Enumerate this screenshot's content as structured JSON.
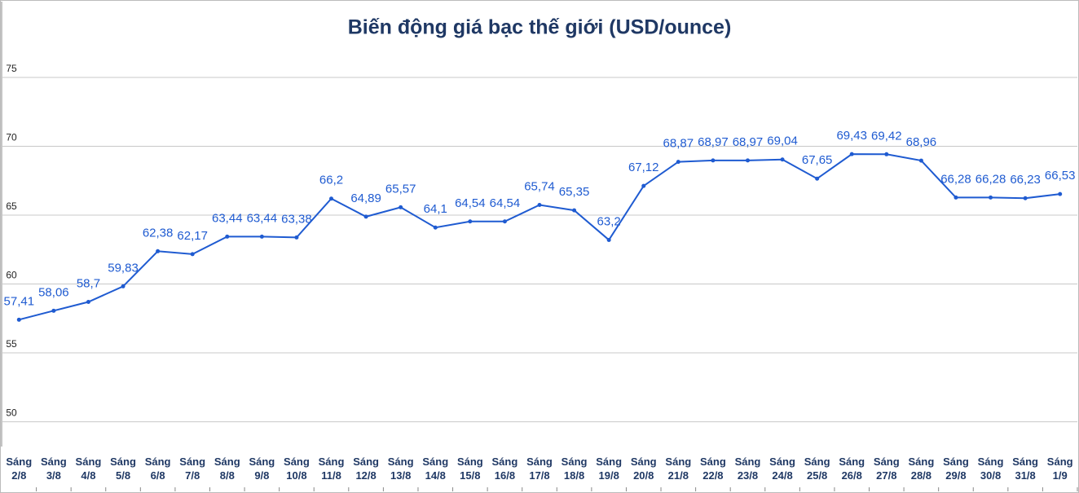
{
  "chart_data": {
    "type": "line",
    "title": "Biến động giá bạc thế giới (USD/ounce)",
    "categories": [
      "Sáng 2/8",
      "Sáng 3/8",
      "Sáng 4/8",
      "Sáng 5/8",
      "Sáng 6/8",
      "Sáng 7/8",
      "Sáng 8/8",
      "Sáng 9/8",
      "Sáng 10/8",
      "Sáng 11/8",
      "Sáng 12/8",
      "Sáng 13/8",
      "Sáng 14/8",
      "Sáng 15/8",
      "Sáng 16/8",
      "Sáng 17/8",
      "Sáng 18/8",
      "Sáng 19/8",
      "Sáng 20/8",
      "Sáng 21/8",
      "Sáng 22/8",
      "Sáng 23/8",
      "Sáng 24/8",
      "Sáng 25/8",
      "Sáng 26/8",
      "Sáng 27/8",
      "Sáng 28/8",
      "Sáng 29/8",
      "Sáng 30/8",
      "Sáng 31/8",
      "Sáng 1/9"
    ],
    "values": [
      57.41,
      58.06,
      58.7,
      59.83,
      62.38,
      62.17,
      63.44,
      63.44,
      63.38,
      66.2,
      64.89,
      65.57,
      64.1,
      64.54,
      64.54,
      65.74,
      65.35,
      63.2,
      67.12,
      68.87,
      68.97,
      68.97,
      69.04,
      67.65,
      69.43,
      69.42,
      68.96,
      66.28,
      66.28,
      66.23,
      66.53
    ],
    "value_labels": [
      "57,41",
      "58,06",
      "58,7",
      "59,83",
      "62,38",
      "62,17",
      "63,44",
      "63,44",
      "63,38",
      "66,2",
      "64,89",
      "65,57",
      "64,1",
      "64,54",
      "64,54",
      "65,74",
      "65,35",
      "63,2",
      "67,12",
      "68,87",
      "68,97",
      "68,97",
      "69,04",
      "67,65",
      "69,43",
      "69,42",
      "68,96",
      "66,28",
      "66,28",
      "66,23",
      "66,53"
    ],
    "color": "#1f5bd1",
    "ylim": [
      48.2,
      80.5
    ],
    "yticks": [
      50,
      55,
      60,
      65,
      70,
      75
    ],
    "grid": true
  }
}
